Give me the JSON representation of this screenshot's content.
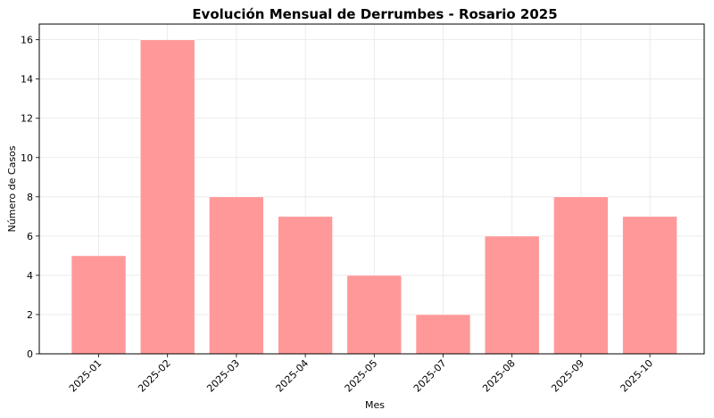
{
  "chart_data": {
    "type": "bar",
    "title": "Evolución Mensual de Derrumbes - Rosario 2025",
    "xlabel": "Mes",
    "ylabel": "Número de Casos",
    "categories": [
      "2025-01",
      "2025-02",
      "2025-03",
      "2025-04",
      "2025-05",
      "2025-07",
      "2025-08",
      "2025-09",
      "2025-10"
    ],
    "values": [
      5,
      16,
      8,
      7,
      4,
      2,
      6,
      8,
      7
    ],
    "ylim": [
      0,
      16.8
    ],
    "yticks": [
      0,
      2,
      4,
      6,
      8,
      10,
      12,
      14,
      16
    ],
    "grid": true,
    "bar_color": "#ff9999"
  }
}
